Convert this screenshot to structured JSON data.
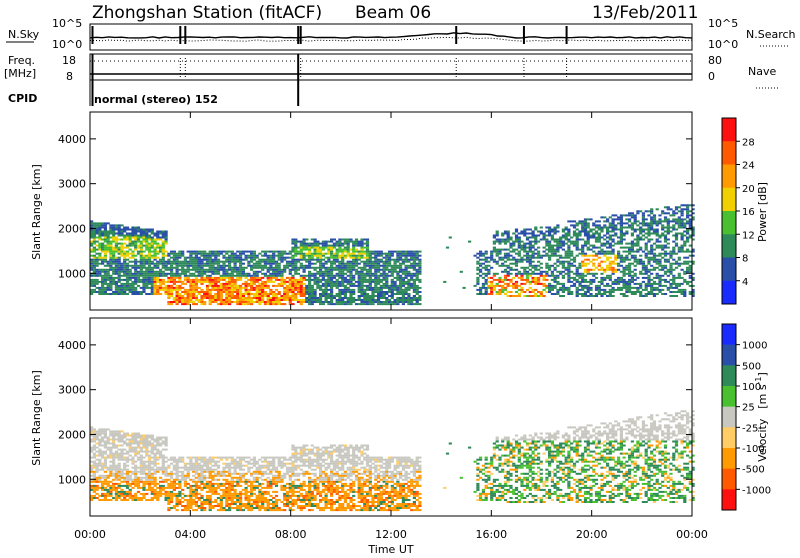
{
  "header": {
    "station": "Zhongshan Station (fitACF)",
    "beam": "Beam 06",
    "date": "13/Feb/2011"
  },
  "strip_labels": {
    "nsky": "N.Sky",
    "nsky_top": "10^5",
    "nsky_bottom": "10^0",
    "nsearch": "N.Search",
    "nsearch_top": "10^5",
    "nsearch_bottom": "10^0",
    "freq_label": "Freq.",
    "freq_unit": "[MHz]",
    "freq_top": "18",
    "freq_bottom": "8",
    "nave": "Nave",
    "nave_top": "80",
    "nave_bottom": "0",
    "cpid": "CPID",
    "mode": "normal (stereo) 152"
  },
  "colors": {
    "power": [
      "#1a2bff",
      "#2a4fa8",
      "#2f8a5a",
      "#49c02f",
      "#f0d000",
      "#ff9a00",
      "#ff5a00",
      "#ff1010"
    ],
    "velocity": [
      "#ff1010",
      "#ff5a00",
      "#ff9a00",
      "#ffcc66",
      "#c8c8c0",
      "#49c02f",
      "#2f8a5a",
      "#2a4fa8",
      "#1a2bff"
    ]
  },
  "chart_data": [
    {
      "type": "heatmap",
      "name": "power-panel",
      "ylabel": "Slant Range [km]",
      "yticks": [
        "4000",
        "3000",
        "2000",
        "1000"
      ],
      "ylim": [
        180,
        4600
      ],
      "colorbar": {
        "label": "Power [dB]",
        "ticks": [
          "28",
          "24",
          "20",
          "16",
          "12",
          "8",
          "4"
        ],
        "range": [
          0,
          32
        ]
      },
      "echo_regions": [
        {
          "t_start": 0.0,
          "t_end": 13.0,
          "range_min": 300,
          "range_max": 2200,
          "note": "dense echoes, high power near 300-900 km after 03:00"
        },
        {
          "t_start": 15.3,
          "t_end": 24.0,
          "range_min": 400,
          "range_max": 2500,
          "note": "echoes strongest 16:00-18:00 near 600-900 km"
        }
      ]
    },
    {
      "type": "heatmap",
      "name": "velocity-panel",
      "ylabel": "Slant Range [km]",
      "yticks": [
        "4000",
        "3000",
        "2000",
        "1000"
      ],
      "ylim": [
        180,
        4600
      ],
      "colorbar": {
        "label": "Velocity",
        "unit": "[m s",
        "unit_exp": "-1",
        "unit_end": "]",
        "ticks": [
          "1000",
          "500",
          "100",
          "25",
          "-25",
          "-100",
          "-500",
          "-1000"
        ]
      },
      "echo_regions": [
        {
          "t_start": 0.0,
          "t_end": 13.0,
          "range_min": 300,
          "range_max": 2200,
          "note": "mostly ground scatter (grey) above 1200 km, negative velocity below"
        },
        {
          "t_start": 15.3,
          "t_end": 24.0,
          "range_min": 400,
          "range_max": 2500,
          "note": "mostly positive velocity (green)"
        }
      ]
    }
  ],
  "time_axis": {
    "xlabel": "Time UT",
    "ticks": [
      "00:00",
      "04:00",
      "08:00",
      "12:00",
      "16:00",
      "20:00",
      "00:00"
    ],
    "range_hours": [
      0,
      24
    ]
  }
}
